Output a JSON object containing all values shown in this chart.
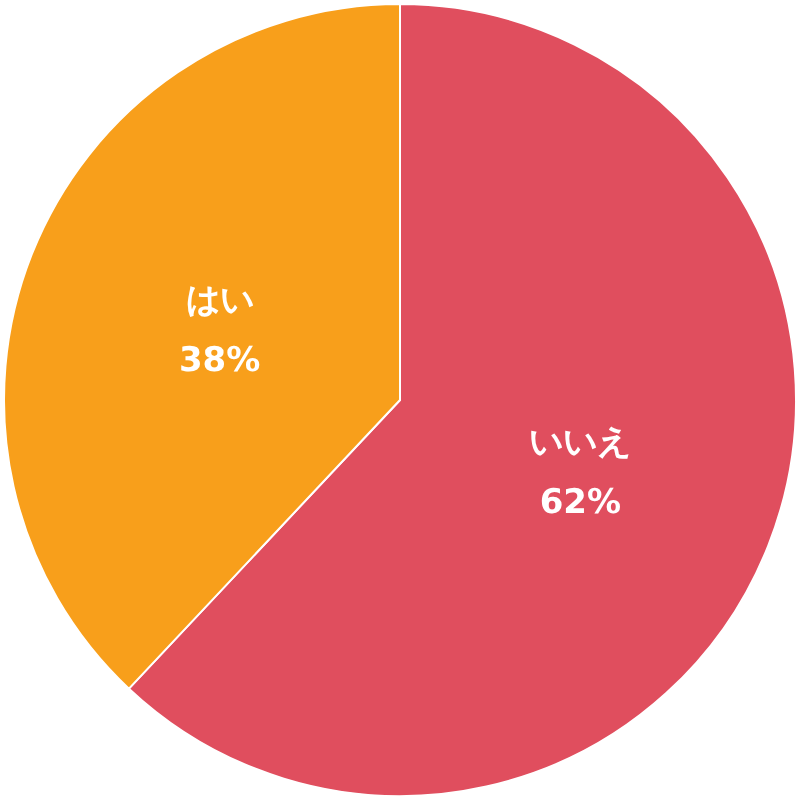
{
  "chart_data": {
    "type": "pie",
    "categories": [
      "いいえ",
      "はい"
    ],
    "values": [
      62,
      38
    ],
    "colors": [
      "#e04e5e",
      "#f89f1b"
    ],
    "value_labels": [
      "62%",
      "38%"
    ]
  }
}
